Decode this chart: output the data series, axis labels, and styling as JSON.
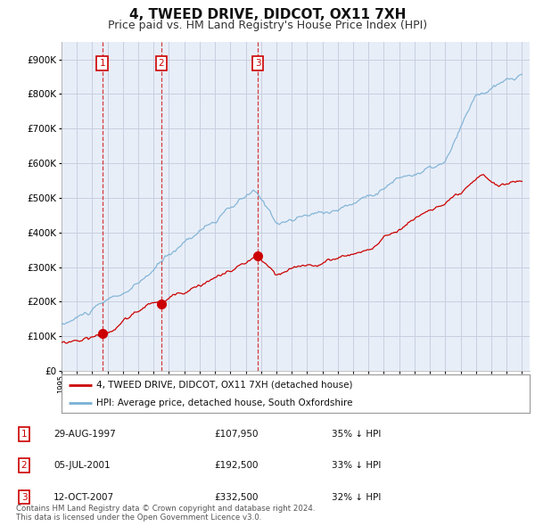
{
  "title": "4, TWEED DRIVE, DIDCOT, OX11 7XH",
  "subtitle": "Price paid vs. HM Land Registry's House Price Index (HPI)",
  "title_fontsize": 11,
  "subtitle_fontsize": 9,
  "bg_color": "#ffffff",
  "grid_color": "#c8d0e0",
  "plot_bg": "#e8eef8",
  "red_line_color": "#cc0000",
  "blue_line_color": "#7ab0d4",
  "sale_marker_color": "#cc0000",
  "legend_label_red": "4, TWEED DRIVE, DIDCOT, OX11 7XH (detached house)",
  "legend_label_blue": "HPI: Average price, detached house, South Oxfordshire",
  "footer": "Contains HM Land Registry data © Crown copyright and database right 2024.\nThis data is licensed under the Open Government Licence v3.0.",
  "purchases": [
    {
      "num": 1,
      "date": "29-AUG-1997",
      "price": 107950,
      "hpi_note": "35% ↓ HPI",
      "x": 1997.66
    },
    {
      "num": 2,
      "date": "05-JUL-2001",
      "price": 192500,
      "hpi_note": "33% ↓ HPI",
      "x": 2001.51
    },
    {
      "num": 3,
      "date": "12-OCT-2007",
      "price": 332500,
      "hpi_note": "32% ↓ HPI",
      "x": 2007.78
    }
  ],
  "xlim": [
    1995.0,
    2025.5
  ],
  "ylim": [
    0,
    950000
  ],
  "yticks": [
    0,
    100000,
    200000,
    300000,
    400000,
    500000,
    600000,
    700000,
    800000,
    900000
  ]
}
